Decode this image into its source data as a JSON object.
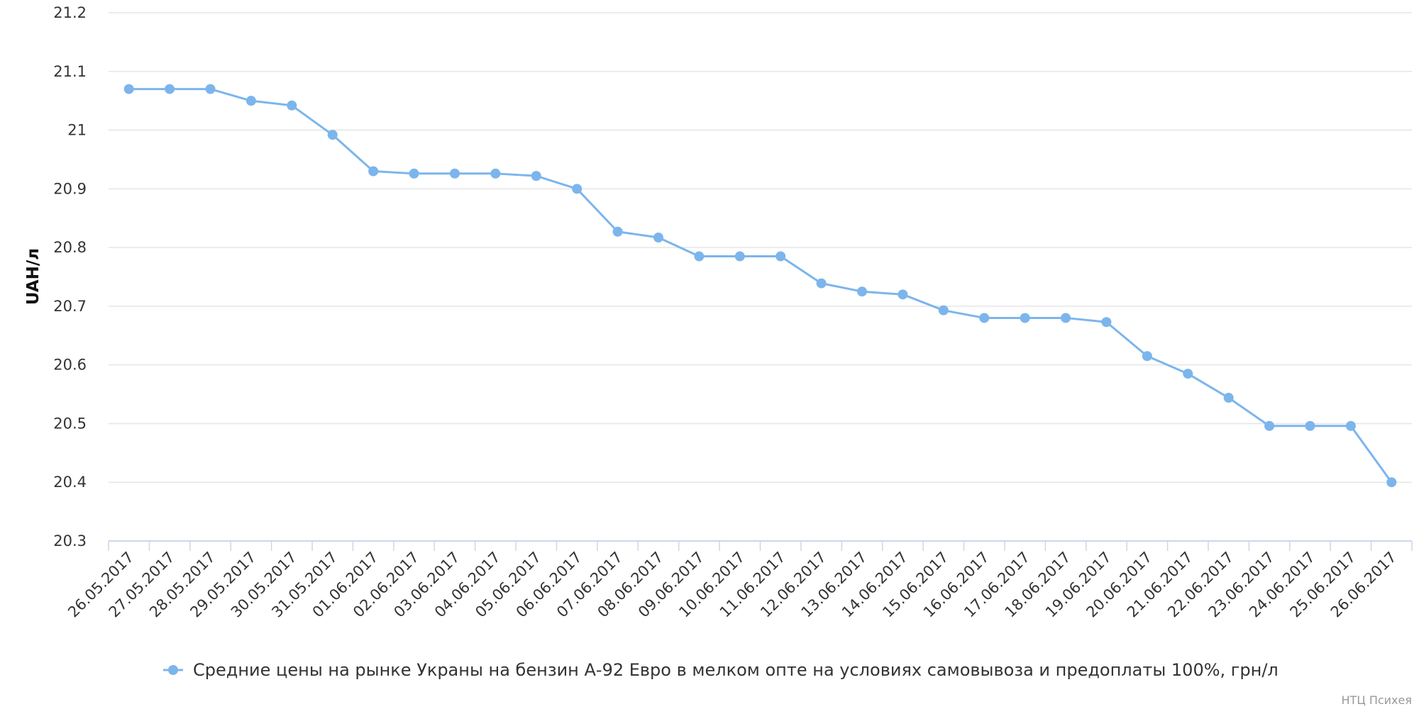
{
  "chart_data": {
    "type": "line",
    "title": "",
    "xlabel": "",
    "ylabel": "UAH/л",
    "ylim": [
      20.3,
      21.2
    ],
    "yticks": [
      20.3,
      20.4,
      20.5,
      20.6,
      20.7,
      20.8,
      20.9,
      21,
      21.1,
      21.2
    ],
    "grid": true,
    "legend_position": "bottom",
    "categories": [
      "26.05.2017",
      "27.05.2017",
      "28.05.2017",
      "29.05.2017",
      "30.05.2017",
      "31.05.2017",
      "01.06.2017",
      "02.06.2017",
      "03.06.2017",
      "04.06.2017",
      "05.06.2017",
      "06.06.2017",
      "07.06.2017",
      "08.06.2017",
      "09.06.2017",
      "10.06.2017",
      "11.06.2017",
      "12.06.2017",
      "13.06.2017",
      "14.06.2017",
      "15.06.2017",
      "16.06.2017",
      "17.06.2017",
      "18.06.2017",
      "19.06.2017",
      "20.06.2017",
      "21.06.2017",
      "22.06.2017",
      "23.06.2017",
      "24.06.2017",
      "25.06.2017",
      "26.06.2017"
    ],
    "series": [
      {
        "name": "Средние цены на рынке Украны на бензин А-92 Евро в мелком опте на условиях самовывоза и предоплаты 100%, грн/л",
        "color": "#7cb5ec",
        "values": [
          21.07,
          21.07,
          21.07,
          21.05,
          21.042,
          20.992,
          20.93,
          20.926,
          20.926,
          20.926,
          20.922,
          20.9,
          20.827,
          20.817,
          20.785,
          20.785,
          20.785,
          20.739,
          20.725,
          20.72,
          20.693,
          20.68,
          20.68,
          20.68,
          20.673,
          20.615,
          20.585,
          20.544,
          20.496,
          20.496,
          20.496,
          20.4
        ]
      }
    ]
  },
  "credit": "НТЦ Психея",
  "colors": {
    "grid": "#e6e6e6",
    "axis": "#ccd6eb",
    "series": "#7cb5ec"
  }
}
